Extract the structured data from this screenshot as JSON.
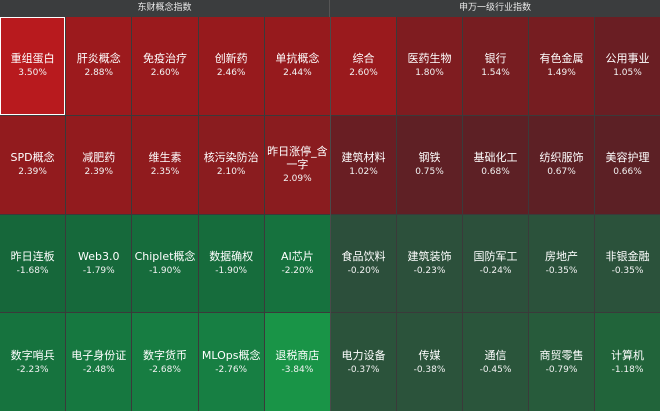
{
  "headers": {
    "left": "东财概念指数",
    "right": "申万一级行业指数"
  },
  "left_tiles": [
    {
      "name": "重组蛋白",
      "pct": "3.50%",
      "color": "#b81a1e",
      "selected": true
    },
    {
      "name": "肝炎概念",
      "pct": "2.88%",
      "color": "#9c1a1d"
    },
    {
      "name": "免疫治疗",
      "pct": "2.60%",
      "color": "#9a1a1d"
    },
    {
      "name": "创新药",
      "pct": "2.46%",
      "color": "#971a1d"
    },
    {
      "name": "单抗概念",
      "pct": "2.44%",
      "color": "#961a1d"
    },
    {
      "name": "SPD概念",
      "pct": "2.39%",
      "color": "#921b1e"
    },
    {
      "name": "减肥药",
      "pct": "2.39%",
      "color": "#921b1e"
    },
    {
      "name": "维生素",
      "pct": "2.35%",
      "color": "#901b1e"
    },
    {
      "name": "核污染防治",
      "pct": "2.10%",
      "color": "#8a1c1f"
    },
    {
      "name": "昨日涨停_含一字",
      "pct": "2.09%",
      "color": "#8a1c1f"
    },
    {
      "name": "昨日连板",
      "pct": "-1.68%",
      "color": "#16673a"
    },
    {
      "name": "Web3.0",
      "pct": "-1.79%",
      "color": "#16693b"
    },
    {
      "name": "Chiplet概念",
      "pct": "-1.90%",
      "color": "#166c3c"
    },
    {
      "name": "数据确权",
      "pct": "-1.90%",
      "color": "#166c3c"
    },
    {
      "name": "AI芯片",
      "pct": "-2.20%",
      "color": "#16723e"
    },
    {
      "name": "数字哨兵",
      "pct": "-2.23%",
      "color": "#16733e"
    },
    {
      "name": "电子身份证",
      "pct": "-2.48%",
      "color": "#167840"
    },
    {
      "name": "数字货币",
      "pct": "-2.68%",
      "color": "#177d42"
    },
    {
      "name": "MLOps概念",
      "pct": "-2.76%",
      "color": "#177f43"
    },
    {
      "name": "退税商店",
      "pct": "-3.84%",
      "color": "#199447"
    }
  ],
  "right_tiles": [
    {
      "name": "综合",
      "pct": "2.60%",
      "color": "#9a1a1d"
    },
    {
      "name": "医药生物",
      "pct": "1.80%",
      "color": "#7f1c20"
    },
    {
      "name": "银行",
      "pct": "1.54%",
      "color": "#771d21"
    },
    {
      "name": "有色金属",
      "pct": "1.49%",
      "color": "#761d21"
    },
    {
      "name": "公用事业",
      "pct": "1.05%",
      "color": "#6a1e23"
    },
    {
      "name": "建筑材料",
      "pct": "1.02%",
      "color": "#691e23"
    },
    {
      "name": "钢铁",
      "pct": "0.75%",
      "color": "#5f2025"
    },
    {
      "name": "基础化工",
      "pct": "0.68%",
      "color": "#5d2025"
    },
    {
      "name": "纺织服饰",
      "pct": "0.67%",
      "color": "#5d2025"
    },
    {
      "name": "美容护理",
      "pct": "0.66%",
      "color": "#5c2025"
    },
    {
      "name": "食品饮料",
      "pct": "-0.20%",
      "color": "#2c4f3b"
    },
    {
      "name": "建筑装饰",
      "pct": "-0.23%",
      "color": "#2c503b"
    },
    {
      "name": "国防军工",
      "pct": "-0.24%",
      "color": "#2c503b"
    },
    {
      "name": "房地产",
      "pct": "-0.35%",
      "color": "#2b523b"
    },
    {
      "name": "非银金融",
      "pct": "-0.35%",
      "color": "#2b523b"
    },
    {
      "name": "电力设备",
      "pct": "-0.37%",
      "color": "#2b533b"
    },
    {
      "name": "传媒",
      "pct": "-0.38%",
      "color": "#2b533b"
    },
    {
      "name": "通信",
      "pct": "-0.45%",
      "color": "#2a553b"
    },
    {
      "name": "商贸零售",
      "pct": "-0.79%",
      "color": "#275b3b"
    },
    {
      "name": "计算机",
      "pct": "-1.18%",
      "color": "#21643a"
    }
  ]
}
